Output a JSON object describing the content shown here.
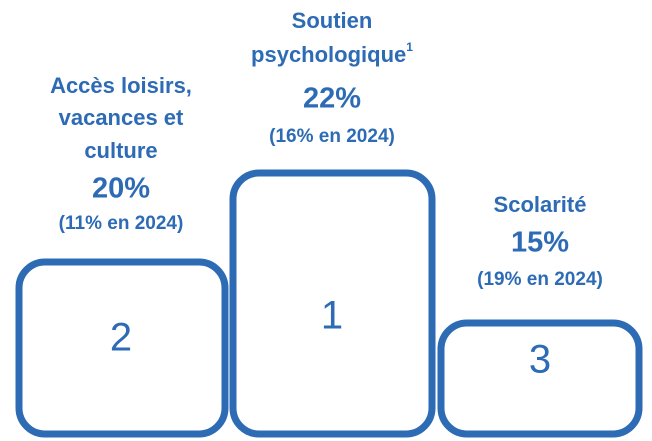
{
  "podium": [
    {
      "label_lines": [
        "Accès loisirs,",
        "vacances et",
        "culture"
      ],
      "value": "20%",
      "previous": "(11% en 2024)",
      "rank": "2"
    },
    {
      "label_lines": [
        "Soutien",
        "psychologique"
      ],
      "note": "1",
      "value": "22%",
      "previous": "(16% en 2024)",
      "rank": "1"
    },
    {
      "label_lines": [
        "Scolarité"
      ],
      "value": "15%",
      "previous": "(19% en 2024)",
      "rank": "3"
    }
  ]
}
